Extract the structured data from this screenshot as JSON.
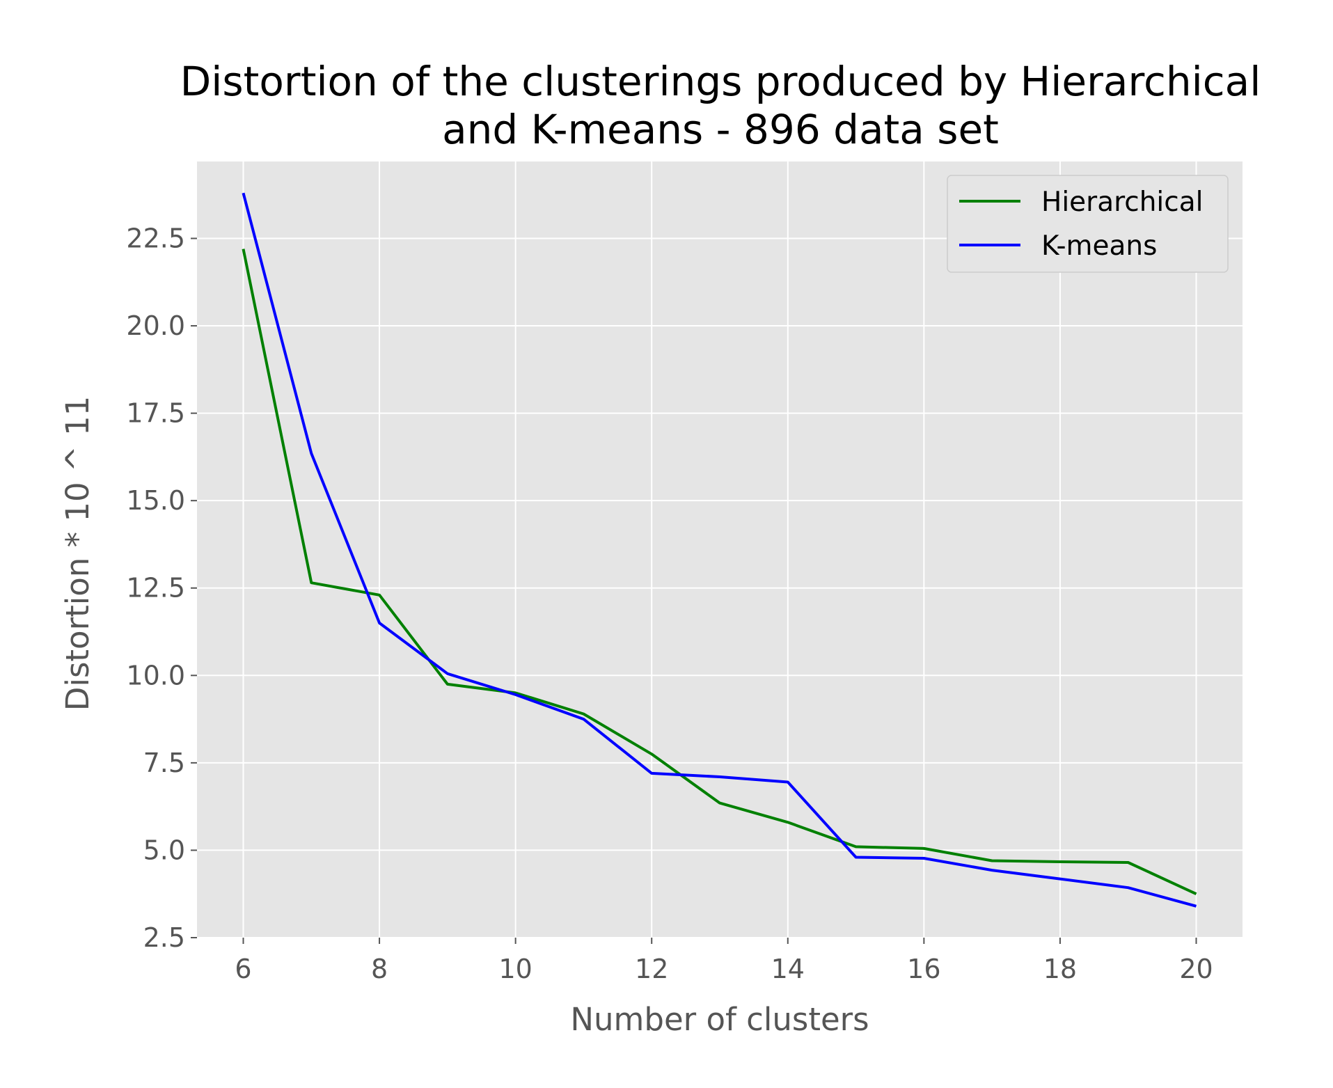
{
  "chart_data": {
    "type": "line",
    "title": [
      "Distortion of the clusterings produced by Hierarchical",
      "and K-means - 896 data set"
    ],
    "xlabel": "Number of clusters",
    "ylabel": "Distortion * 10 ^ 11",
    "xlim": [
      5.32,
      20.68
    ],
    "ylim": [
      2.5,
      24.7
    ],
    "xticks": [
      6,
      8,
      10,
      12,
      14,
      16,
      18,
      20
    ],
    "yticks": [
      2.5,
      5.0,
      7.5,
      10.0,
      12.5,
      15.0,
      17.5,
      20.0,
      22.5
    ],
    "xtick_labels": [
      "6",
      "8",
      "10",
      "12",
      "14",
      "16",
      "18",
      "20"
    ],
    "ytick_labels": [
      "2.5",
      "5.0",
      "7.5",
      "10.0",
      "12.5",
      "15.0",
      "17.5",
      "20.0",
      "22.5"
    ],
    "grid": true,
    "legend_position": "top-right",
    "x": [
      6,
      7,
      8,
      9,
      10,
      11,
      12,
      13,
      14,
      15,
      16,
      17,
      18,
      19,
      20
    ],
    "series": [
      {
        "name": "Hierarchical",
        "color": "#008000",
        "values": [
          22.2,
          12.65,
          12.3,
          9.75,
          9.5,
          8.9,
          7.75,
          6.35,
          5.8,
          5.1,
          5.05,
          4.7,
          4.67,
          4.65,
          3.75
        ]
      },
      {
        "name": "K-means",
        "color": "#0000ff",
        "values": [
          23.8,
          16.35,
          11.5,
          10.05,
          9.45,
          8.75,
          7.2,
          7.1,
          6.95,
          4.8,
          4.77,
          4.43,
          4.18,
          3.93,
          3.4
        ]
      }
    ],
    "style": {
      "background": "#e5e5e5",
      "grid_color": "#ffffff",
      "text_color": "#555555"
    }
  }
}
